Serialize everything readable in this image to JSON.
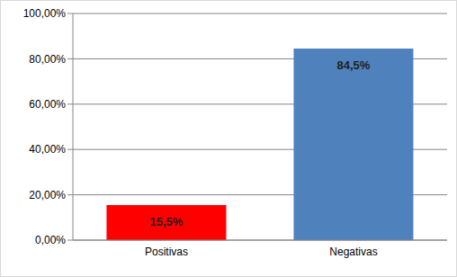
{
  "chart_data": {
    "type": "bar",
    "categories": [
      "Positivas",
      "Negativas"
    ],
    "values": [
      15.5,
      84.5
    ],
    "value_labels": [
      "15,5%",
      "84,5%"
    ],
    "colors": [
      "#ff0000",
      "#4f81bd"
    ],
    "ylim": [
      0,
      100
    ],
    "yticks": [
      {
        "value": 0,
        "label": "0,00%"
      },
      {
        "value": 20,
        "label": "20,00%"
      },
      {
        "value": 40,
        "label": "40,00%"
      },
      {
        "value": 60,
        "label": "60,00%"
      },
      {
        "value": 80,
        "label": "80,00%"
      },
      {
        "value": 100,
        "label": "100,00%"
      }
    ],
    "grid": true,
    "data_labels": true
  }
}
